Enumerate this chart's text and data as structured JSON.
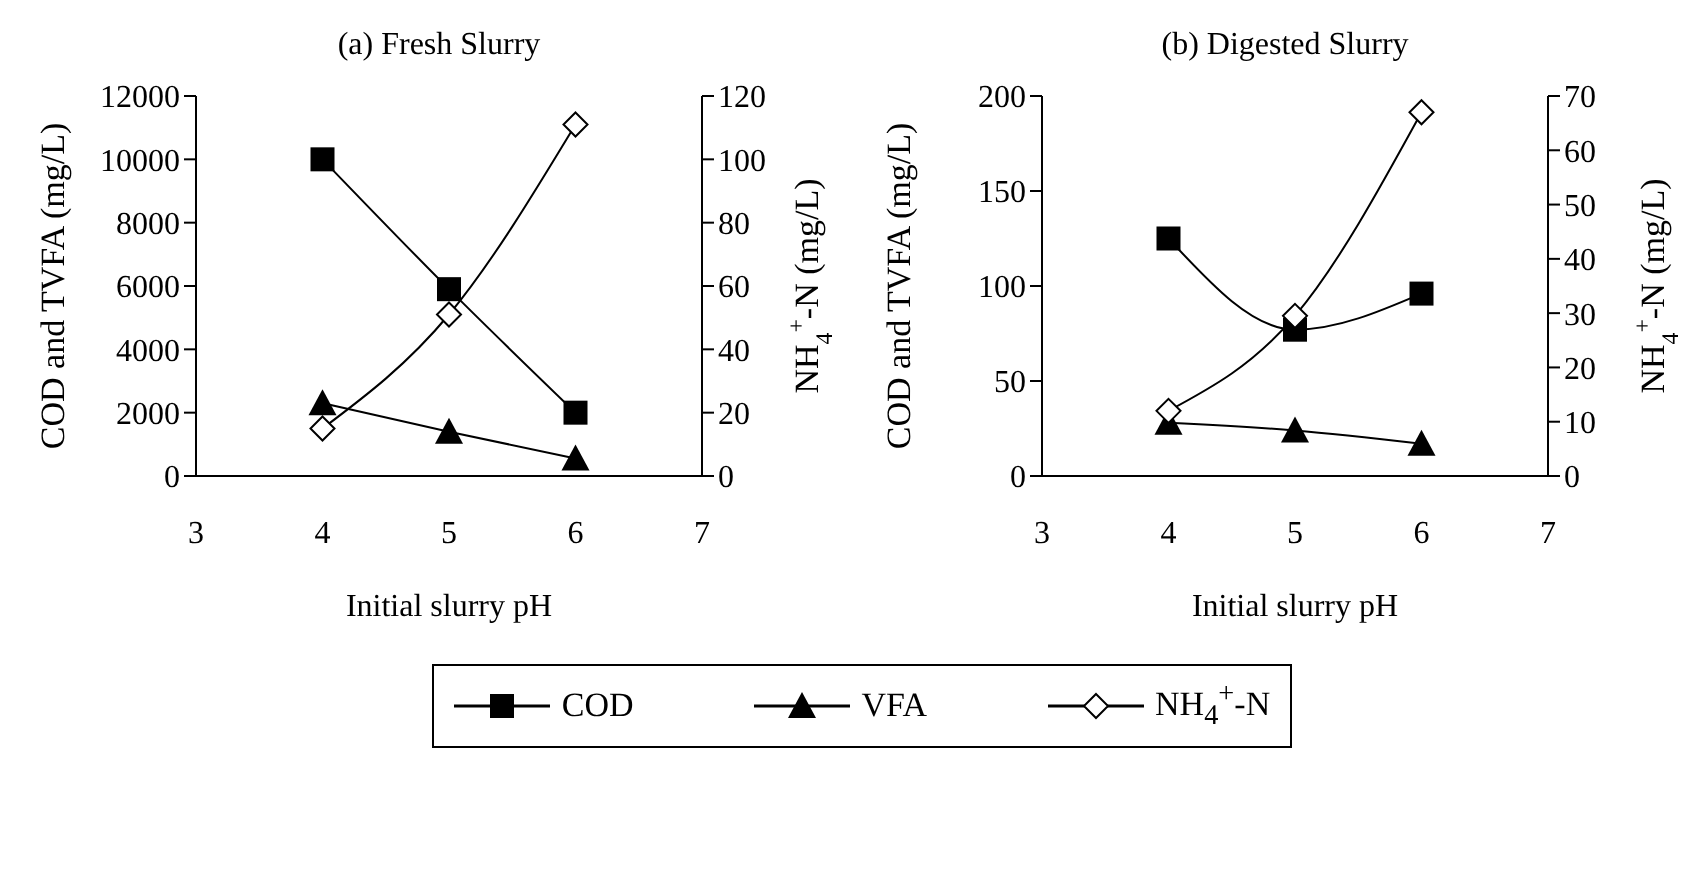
{
  "chart_data": [
    {
      "type": "line",
      "title": "(a) Fresh Slurry",
      "xlabel": "Initial slurry pH",
      "ylabel": "COD and TVFA (mg/L)",
      "y2label": "NH$_{4}$$^{+}$-N (mg/L)",
      "x": [
        4,
        5,
        6
      ],
      "xlim": [
        3,
        7
      ],
      "xticks": [
        3,
        4,
        5,
        6,
        7
      ],
      "ylim": [
        0,
        12000
      ],
      "yticks": [
        0,
        2000,
        4000,
        6000,
        8000,
        10000,
        12000
      ],
      "y2lim": [
        0,
        120
      ],
      "y2ticks": [
        0,
        20,
        40,
        60,
        80,
        100,
        120
      ],
      "grid": false,
      "legend": "bottom",
      "series": [
        {
          "name": "COD",
          "color": "#000000",
          "marker": "square",
          "values": [
            10000,
            5900,
            2000
          ]
        },
        {
          "name": "VFA",
          "color": "#000000",
          "marker": "triangle",
          "values": [
            2300,
            1400,
            550
          ]
        },
        {
          "name": "NH$_{4}$$^{+}$-N",
          "color": "#000000",
          "marker": "diamond",
          "axis": "y2",
          "values": [
            15,
            51,
            111
          ]
        }
      ]
    },
    {
      "type": "line",
      "title": "(b) Digested Slurry",
      "xlabel": "Initial slurry pH",
      "ylabel": "COD and TVFA (mg/L)",
      "y2label": "NH$_{4}$$^{+}$-N (mg/L)",
      "x": [
        4,
        5,
        6
      ],
      "xlim": [
        3,
        7
      ],
      "xticks": [
        3,
        4,
        5,
        6,
        7
      ],
      "ylim": [
        0,
        200
      ],
      "yticks": [
        0,
        50,
        100,
        150,
        200
      ],
      "y2lim": [
        0,
        70
      ],
      "y2ticks": [
        0,
        10,
        20,
        30,
        40,
        50,
        60,
        70
      ],
      "grid": false,
      "series": [
        {
          "color": "#000000",
          "marker": "square",
          "values": [
            125,
            77,
            96
          ]
        },
        {
          "color": "#000000",
          "marker": "triangle",
          "values": [
            28,
            24,
            17
          ]
        },
        {
          "color": "#000000",
          "marker": "diamond",
          "axis": "y2",
          "values": [
            12,
            29.5,
            67
          ]
        }
      ]
    }
  ]
}
